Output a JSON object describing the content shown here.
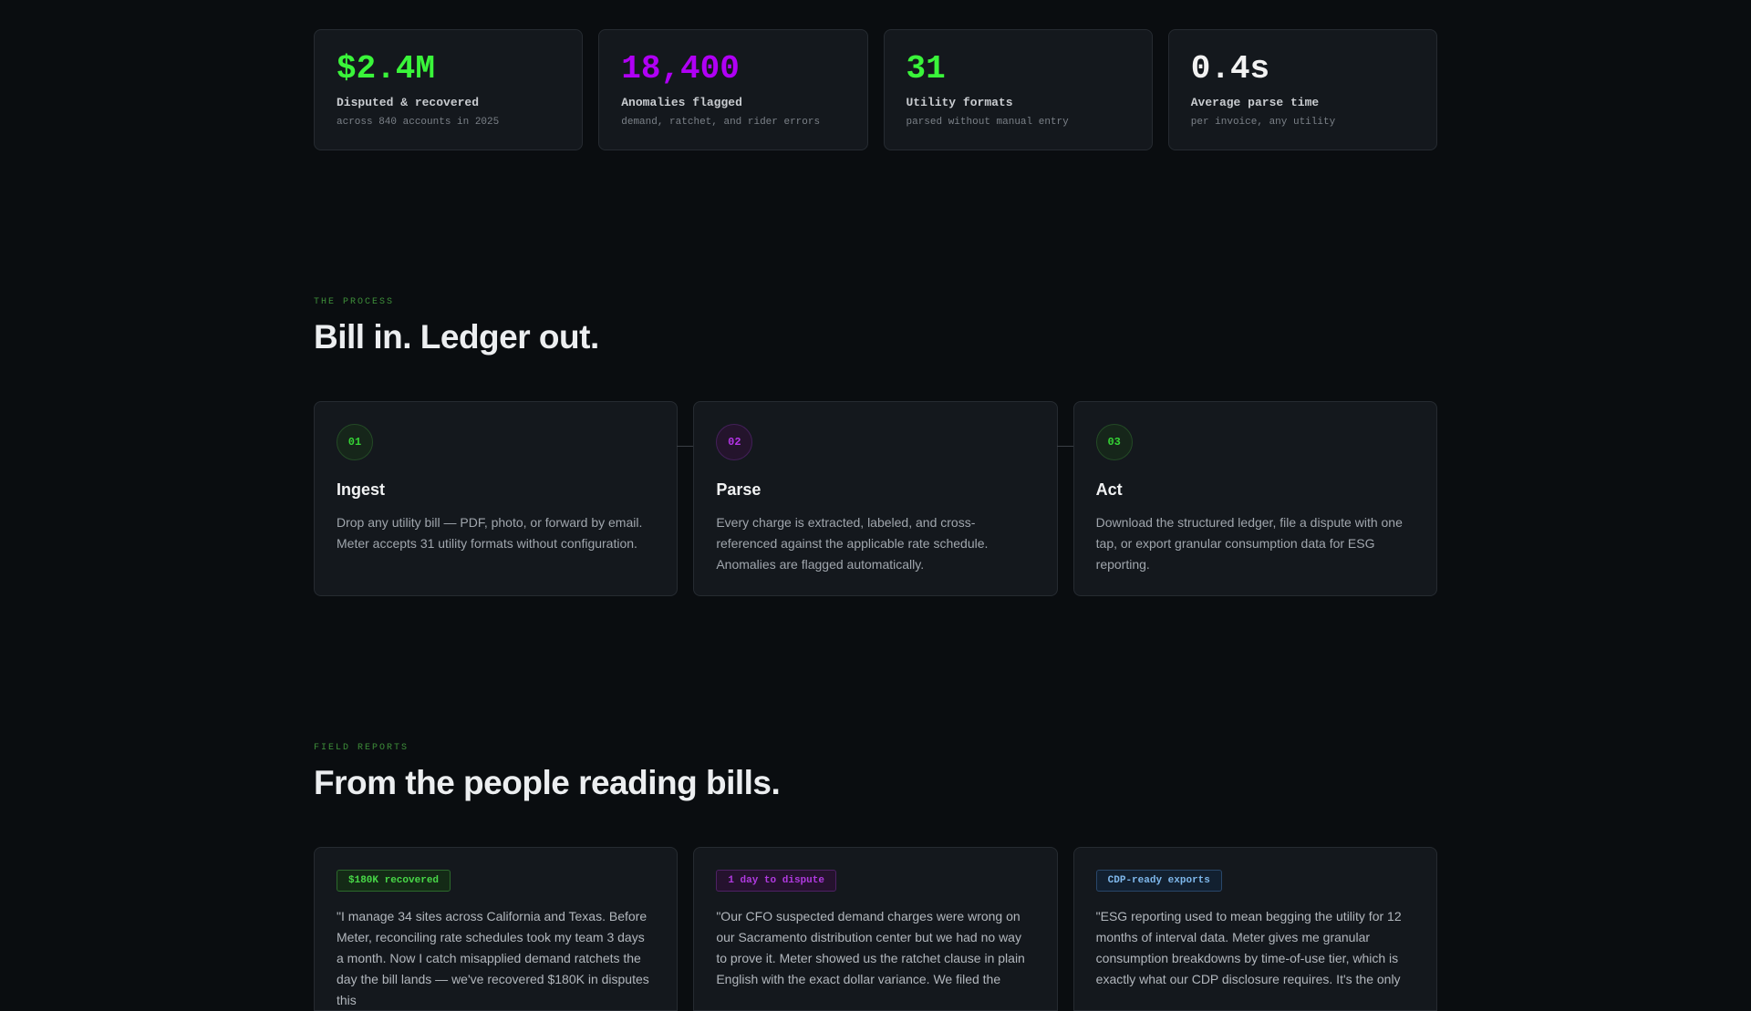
{
  "stats": [
    {
      "value": "$2.4M",
      "label": "Disputed & recovered",
      "sub": "across 840 accounts in 2025",
      "color": "#3af53a"
    },
    {
      "value": "18,400",
      "label": "Anomalies flagged",
      "sub": "demand, ratchet, and rider errors",
      "color": "#b000f5"
    },
    {
      "value": "31",
      "label": "Utility formats",
      "sub": "parsed without manual entry",
      "color": "#3af53a"
    },
    {
      "value": "0.4s",
      "label": "Average parse time",
      "sub": "per invoice, any utility",
      "color": "#f2f2f2"
    }
  ],
  "process": {
    "eyebrow": "THE PROCESS",
    "title": "Bill in. Ledger out.",
    "steps": [
      {
        "num": "01",
        "title": "Ingest",
        "desc": "Drop any utility bill — PDF, photo, or forward by email. Meter accepts 31 utility formats without configuration."
      },
      {
        "num": "02",
        "title": "Parse",
        "desc": "Every charge is extracted, labeled, and cross-referenced against the applicable rate schedule. Anomalies are flagged automatically."
      },
      {
        "num": "03",
        "title": "Act",
        "desc": "Download the structured ledger, file a dispute with one tap, or export granular consumption data for ESG reporting."
      }
    ]
  },
  "reports": {
    "eyebrow": "FIELD REPORTS",
    "title": "From the people reading bills.",
    "quotes": [
      {
        "badge": "$180K recovered",
        "text": "\"I manage 34 sites across California and Texas. Before Meter, reconciling rate schedules took my team 3 days a month. Now I catch misapplied demand ratchets the day the bill lands — we've recovered $180K in disputes this"
      },
      {
        "badge": "1 day to dispute",
        "text": "\"Our CFO suspected demand charges were wrong on our Sacramento distribution center but we had no way to prove it. Meter showed us the ratchet clause in plain English with the exact dollar variance. We filed the"
      },
      {
        "badge": "CDP-ready exports",
        "text": "\"ESG reporting used to mean begging the utility for 12 months of interval data. Meter gives me granular consumption breakdowns by time-of-use tier, which is exactly what our CDP disclosure requires. It's the only"
      }
    ]
  }
}
